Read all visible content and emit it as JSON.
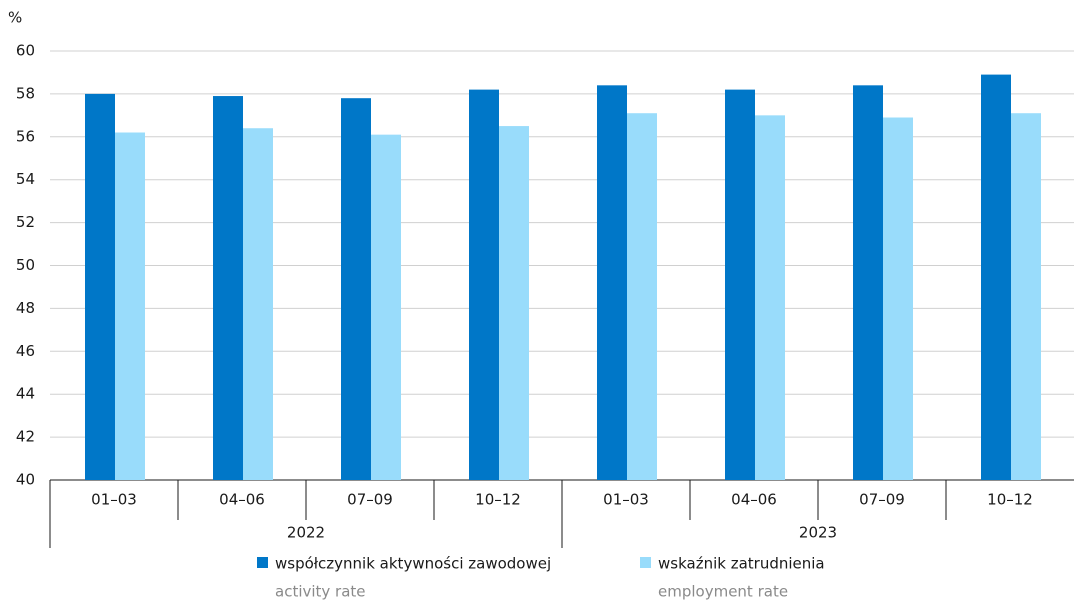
{
  "chart_data": {
    "type": "bar",
    "y_label": "%",
    "categories": [
      "01–03",
      "04–06",
      "07–09",
      "10–12",
      "01–03",
      "04–06",
      "07–09",
      "10–12"
    ],
    "years": [
      "2022",
      "2023"
    ],
    "series": [
      {
        "name": "współczynnik aktywności zawodowej",
        "subname": "activity rate",
        "color": "#0077c8",
        "values": [
          58.0,
          57.9,
          57.8,
          58.2,
          58.4,
          58.2,
          58.4,
          58.9
        ]
      },
      {
        "name": "wskaźnik zatrudnienia",
        "subname": "employment rate",
        "color": "#99dcfb",
        "values": [
          56.2,
          56.4,
          56.1,
          56.5,
          57.1,
          57.0,
          56.9,
          57.1
        ]
      }
    ],
    "ylim": [
      40,
      60
    ],
    "yticks": [
      40,
      42,
      44,
      46,
      48,
      50,
      52,
      54,
      56,
      58,
      60
    ],
    "grid": true
  }
}
